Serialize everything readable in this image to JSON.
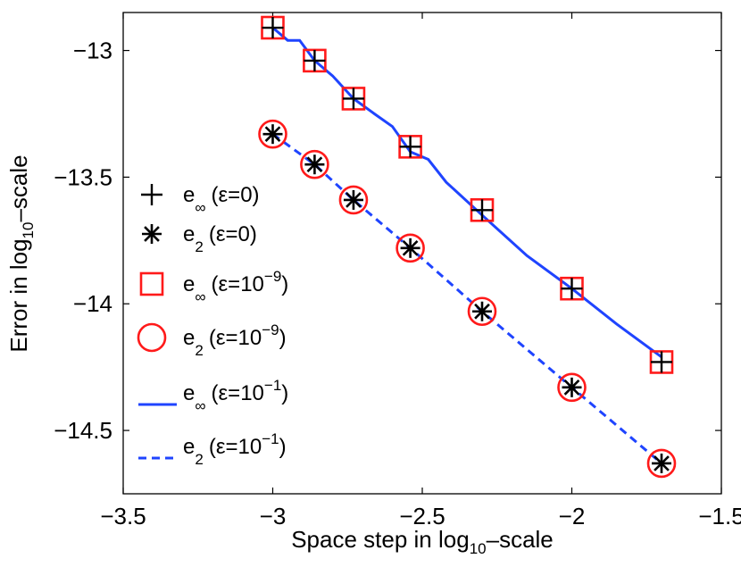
{
  "chart_data": {
    "type": "line",
    "title": "",
    "xlabel": "Space step in log10–scale",
    "ylabel": "Error in log10–scale",
    "xlabel_parts": [
      "Space step in log",
      "10",
      "–scale"
    ],
    "ylabel_parts": [
      "Error in log",
      "10",
      "–scale"
    ],
    "xlim": [
      -3.5,
      -1.5
    ],
    "ylim": [
      -14.75,
      -12.85
    ],
    "xticks": [
      -3.5,
      -3,
      -2.5,
      -2,
      -1.5
    ],
    "xtick_labels": [
      "−3.5",
      "−3",
      "−2.5",
      "−2",
      "−1.5"
    ],
    "yticks": [
      -14.5,
      -14,
      -13.5,
      -13
    ],
    "ytick_labels": [
      "−14.5",
      "−14",
      "−13.5",
      "−13"
    ],
    "grid": false,
    "legend_position": "left",
    "series": [
      {
        "name": "e∞ (ε=0)",
        "legend_main": "e",
        "legend_sub": "∞",
        "legend_sup": "",
        "legend_suffix_a": "(ε=0)",
        "legend_suffix_b": "",
        "marker": "plus",
        "color": "#000000",
        "x": [
          -3.0,
          -2.86,
          -2.73,
          -2.54,
          -2.3,
          -2.0,
          -1.7
        ],
        "y": [
          -12.91,
          -13.04,
          -13.19,
          -13.38,
          -13.63,
          -13.94,
          -14.23
        ]
      },
      {
        "name": "e2 (ε=0)",
        "legend_main": "e",
        "legend_sub": "2",
        "legend_sup": "",
        "legend_suffix_a": "(ε=0)",
        "legend_suffix_b": "",
        "marker": "asterisk",
        "color": "#000000",
        "x": [
          -3.0,
          -2.86,
          -2.73,
          -2.54,
          -2.3,
          -2.0,
          -1.7
        ],
        "y": [
          -13.33,
          -13.45,
          -13.59,
          -13.78,
          -14.03,
          -14.33,
          -14.63
        ]
      },
      {
        "name": "e∞ (ε=10−9)",
        "legend_main": "e",
        "legend_sub": "∞",
        "legend_sup": "−9",
        "legend_suffix_a": "(ε=10",
        "legend_suffix_b": ")",
        "marker": "square",
        "color": "#ff1a1a",
        "x": [
          -3.0,
          -2.86,
          -2.73,
          -2.54,
          -2.3,
          -2.0,
          -1.7
        ],
        "y": [
          -12.91,
          -13.04,
          -13.19,
          -13.38,
          -13.63,
          -13.94,
          -14.23
        ]
      },
      {
        "name": "e2 (ε=10−9)",
        "legend_main": "e",
        "legend_sub": "2",
        "legend_sup": "−9",
        "legend_suffix_a": "(ε=10",
        "legend_suffix_b": ")",
        "marker": "circle",
        "color": "#ff1a1a",
        "x": [
          -3.0,
          -2.86,
          -2.73,
          -2.54,
          -2.3,
          -2.0,
          -1.7
        ],
        "y": [
          -13.33,
          -13.45,
          -13.59,
          -13.78,
          -14.03,
          -14.33,
          -14.63
        ]
      },
      {
        "name": "e∞ (ε=10−1)",
        "legend_main": "e",
        "legend_sub": "∞",
        "legend_sup": "−1",
        "legend_suffix_a": "(ε=10",
        "legend_suffix_b": ")",
        "marker": "solid-line",
        "color": "#1f44ff",
        "x": [
          -3.0,
          -2.95,
          -2.91,
          -2.86,
          -2.8,
          -2.73,
          -2.66,
          -2.6,
          -2.54,
          -2.48,
          -2.42,
          -2.3,
          -2.15,
          -2.0,
          -1.85,
          -1.7
        ],
        "y": [
          -12.91,
          -12.96,
          -12.96,
          -13.04,
          -13.1,
          -13.19,
          -13.25,
          -13.3,
          -13.4,
          -13.43,
          -13.52,
          -13.65,
          -13.81,
          -13.94,
          -14.08,
          -14.21
        ]
      },
      {
        "name": "e2 (ε=10−1)",
        "legend_main": "e",
        "legend_sub": "2",
        "legend_sup": "−1",
        "legend_suffix_a": "(ε=10",
        "legend_suffix_b": ")",
        "marker": "dashed-line",
        "color": "#1f44ff",
        "x": [
          -3.0,
          -2.86,
          -2.73,
          -2.54,
          -2.3,
          -2.0,
          -1.7
        ],
        "y": [
          -13.33,
          -13.45,
          -13.59,
          -13.78,
          -14.03,
          -14.33,
          -14.63
        ]
      }
    ]
  }
}
